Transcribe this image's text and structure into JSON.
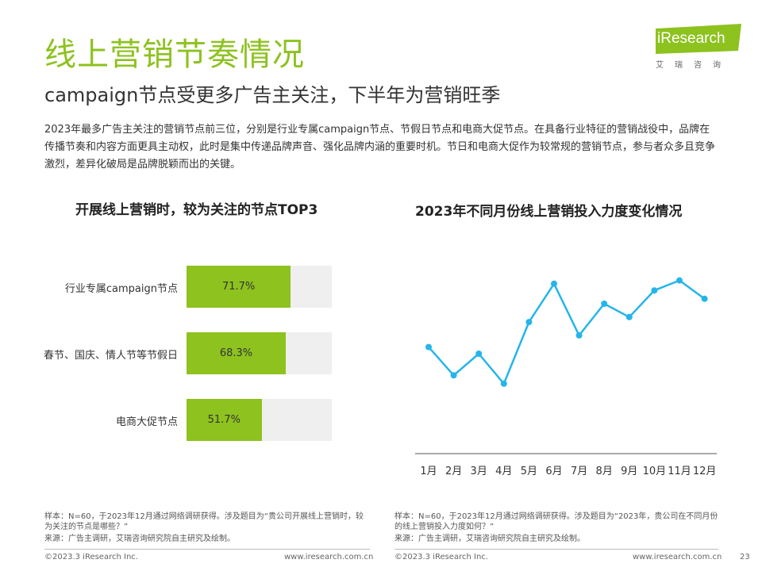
{
  "header": {
    "title": "线上营销节奏情况",
    "subtitle": "campaign节点受更多广告主关注，下半年为营销旺季",
    "intro": "2023年最多广告主关注的营销节点前三位，分别是行业专属campaign节点、节假日节点和电商大促节点。在具备行业特征的营销战役中，品牌在传播节奏和内容方面更具主动权，此时是集中传递品牌声音、强化品牌内涵的重要时机。节日和电商大促作为较常规的营销节点，参与者众多且竞争激烈，差异化破局是品牌脱颖而出的关键。"
  },
  "logo": {
    "name": "iResearch",
    "subtitle": "艾瑞咨询",
    "accent": "#8dc21f"
  },
  "chart_data": [
    {
      "type": "bar",
      "orientation": "horizontal",
      "title": "开展线上营销时，较为关注的节点TOP3",
      "categories": [
        "行业专属campaign节点",
        "春节、国庆、情人节等节假日",
        "电商大促节点"
      ],
      "values": [
        71.7,
        68.3,
        51.7
      ],
      "value_labels": [
        "71.7%",
        "68.3%",
        "51.7%"
      ],
      "xlim": [
        0,
        100
      ],
      "colors": {
        "bar": "#8dc21f",
        "track": "#efefef"
      }
    },
    {
      "type": "line",
      "title": "2023年不同月份线上营销投入力度变化情况",
      "categories": [
        "1月",
        "2月",
        "3月",
        "4月",
        "5月",
        "6月",
        "7月",
        "8月",
        "9月",
        "10月",
        "11月",
        "12月"
      ],
      "values": [
        64,
        47,
        60,
        42,
        79,
        102,
        71,
        90,
        82,
        98,
        104,
        93
      ],
      "ylim": [
        0,
        120
      ],
      "y_axis_shown": false,
      "grid": false,
      "colors": {
        "line": "#25b5e9"
      }
    }
  ],
  "notes": {
    "left": "样本：N=60，于2023年12月通过网络调研获得。涉及题目为“贵公司开展线上营销时，较为关注的节点是哪些？”",
    "right": "样本：N=60，于2023年12月通过网络调研获得。涉及题目为“2023年，贵公司在不同月份的线上营销投入力度如何？”",
    "source": "来源：广告主调研，艾瑞咨询研究院自主研究及绘制。"
  },
  "footer": {
    "copyright": "©2023.3 iResearch Inc.",
    "url": "www.iresearch.com.cn",
    "page": "23"
  }
}
